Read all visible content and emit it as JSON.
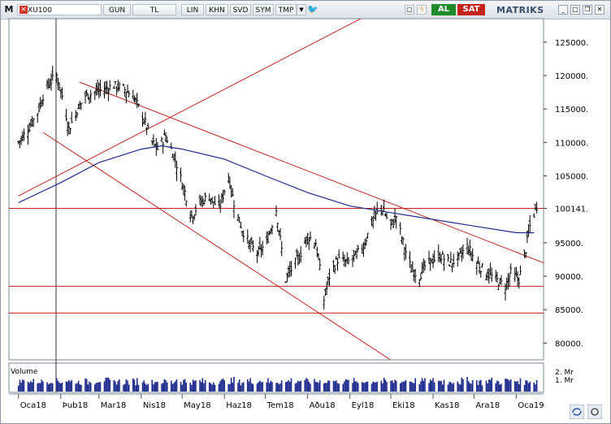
{
  "toolbar": {
    "menu_label": "M",
    "symbol": "XU100",
    "period": "GUN",
    "currency": "TL",
    "scale_lin": "LIN",
    "khn": "KHN",
    "svd": "SVD",
    "sym": "SYM",
    "tmp": "TMP",
    "buy": "AL",
    "sell": "SAT",
    "brand": "MATRIKS"
  },
  "colors": {
    "price": "#000000",
    "moving_average": "#1c2a8c",
    "trend_lines": "#c0241b",
    "volume": "#1c2a8c",
    "buy": "#1f8a2e",
    "sell": "#c0241b"
  },
  "chart_data": {
    "type": "bar",
    "subtype": "ohlc",
    "x": [
      "Oca18",
      "Þub18",
      "Mar18",
      "Nis18",
      "May18",
      "Haz18",
      "Tem18",
      "Aðu18",
      "Eyl18",
      "Eki18",
      "Kas18",
      "Ara18",
      "Oca19"
    ],
    "y_ticks": [
      "125000.",
      "120000.",
      "115000.",
      "110000.",
      "105000.",
      "100141.",
      "95000.",
      "90000.",
      "85000.",
      "80000."
    ],
    "ylim": [
      77500,
      128500
    ],
    "close_path": [
      [
        "2018-01-01",
        110000
      ],
      [
        "2018-01-08",
        112000
      ],
      [
        "2018-01-15",
        114500
      ],
      [
        "2018-01-19",
        117000
      ],
      [
        "2018-01-24",
        119000
      ],
      [
        "2018-01-29",
        120000
      ],
      [
        "2018-02-02",
        117000
      ],
      [
        "2018-02-07",
        112000
      ],
      [
        "2018-02-12",
        114500
      ],
      [
        "2018-02-19",
        117000
      ],
      [
        "2018-02-26",
        117500
      ],
      [
        "2018-03-05",
        118000
      ],
      [
        "2018-03-12",
        118500
      ],
      [
        "2018-03-19",
        118000
      ],
      [
        "2018-03-26",
        117000
      ],
      [
        "2018-04-02",
        114000
      ],
      [
        "2018-04-09",
        110000
      ],
      [
        "2018-04-13",
        109000
      ],
      [
        "2018-04-19",
        111000
      ],
      [
        "2018-04-25",
        108000
      ],
      [
        "2018-05-01",
        104000
      ],
      [
        "2018-05-08",
        99000
      ],
      [
        "2018-05-14",
        101000
      ],
      [
        "2018-05-21",
        102000
      ],
      [
        "2018-05-28",
        100000
      ],
      [
        "2018-06-04",
        105000
      ],
      [
        "2018-06-08",
        101000
      ],
      [
        "2018-06-14",
        97000
      ],
      [
        "2018-06-20",
        94500
      ],
      [
        "2018-06-26",
        93500
      ],
      [
        "2018-07-02",
        95000
      ],
      [
        "2018-07-09",
        100000
      ],
      [
        "2018-07-13",
        94000
      ],
      [
        "2018-07-16",
        89500
      ],
      [
        "2018-07-20",
        91000
      ],
      [
        "2018-07-26",
        93000
      ],
      [
        "2018-08-01",
        96000
      ],
      [
        "2018-08-07",
        95000
      ],
      [
        "2018-08-10",
        91000
      ],
      [
        "2018-08-13",
        86500
      ],
      [
        "2018-08-17",
        90000
      ],
      [
        "2018-08-23",
        92500
      ],
      [
        "2018-08-30",
        92000
      ],
      [
        "2018-09-05",
        93000
      ],
      [
        "2018-09-11",
        94500
      ],
      [
        "2018-09-17",
        98000
      ],
      [
        "2018-09-24",
        100500
      ],
      [
        "2018-10-01",
        97500
      ],
      [
        "2018-10-05",
        99000
      ],
      [
        "2018-10-10",
        95000
      ],
      [
        "2018-10-16",
        91000
      ],
      [
        "2018-10-22",
        90000
      ],
      [
        "2018-10-26",
        91500
      ],
      [
        "2018-11-01",
        92500
      ],
      [
        "2018-11-07",
        93000
      ],
      [
        "2018-11-13",
        92000
      ],
      [
        "2018-11-19",
        92500
      ],
      [
        "2018-11-26",
        94500
      ],
      [
        "2018-12-03",
        92000
      ],
      [
        "2018-12-10",
        90500
      ],
      [
        "2018-12-17",
        89500
      ],
      [
        "2018-12-24",
        88500
      ],
      [
        "2018-12-28",
        90500
      ],
      [
        "2019-01-03",
        89500
      ],
      [
        "2019-01-08",
        94000
      ],
      [
        "2019-01-11",
        97500
      ],
      [
        "2019-01-16",
        100500
      ]
    ],
    "moving_average": [
      [
        "2018-01-01",
        101000
      ],
      [
        "2018-02-01",
        104000
      ],
      [
        "2018-03-01",
        107000
      ],
      [
        "2018-04-01",
        109000
      ],
      [
        "2018-04-16",
        109500
      ],
      [
        "2018-05-01",
        109000
      ],
      [
        "2018-06-01",
        107500
      ],
      [
        "2018-07-01",
        105000
      ],
      [
        "2018-08-01",
        102500
      ],
      [
        "2018-09-01",
        100500
      ],
      [
        "2018-10-01",
        99500
      ],
      [
        "2018-11-01",
        98500
      ],
      [
        "2018-12-01",
        97500
      ],
      [
        "2019-01-01",
        96500
      ],
      [
        "2019-01-14",
        96500
      ]
    ],
    "horizontal_levels": [
      100141,
      88500,
      84500
    ],
    "trend_lines": [
      [
        [
          "2018-01-01",
          102000
        ],
        [
          "2018-10-31",
          134000
        ]
      ],
      [
        [
          "2018-02-15",
          119000
        ],
        [
          "2019-01-21",
          92000
        ]
      ],
      [
        [
          "2018-01-19",
          111500
        ],
        [
          "2018-10-12",
          76000
        ]
      ]
    ],
    "volume_panel": {
      "label": "Volume",
      "ticks": [
        "2. Mr",
        "1. Mr"
      ]
    }
  }
}
